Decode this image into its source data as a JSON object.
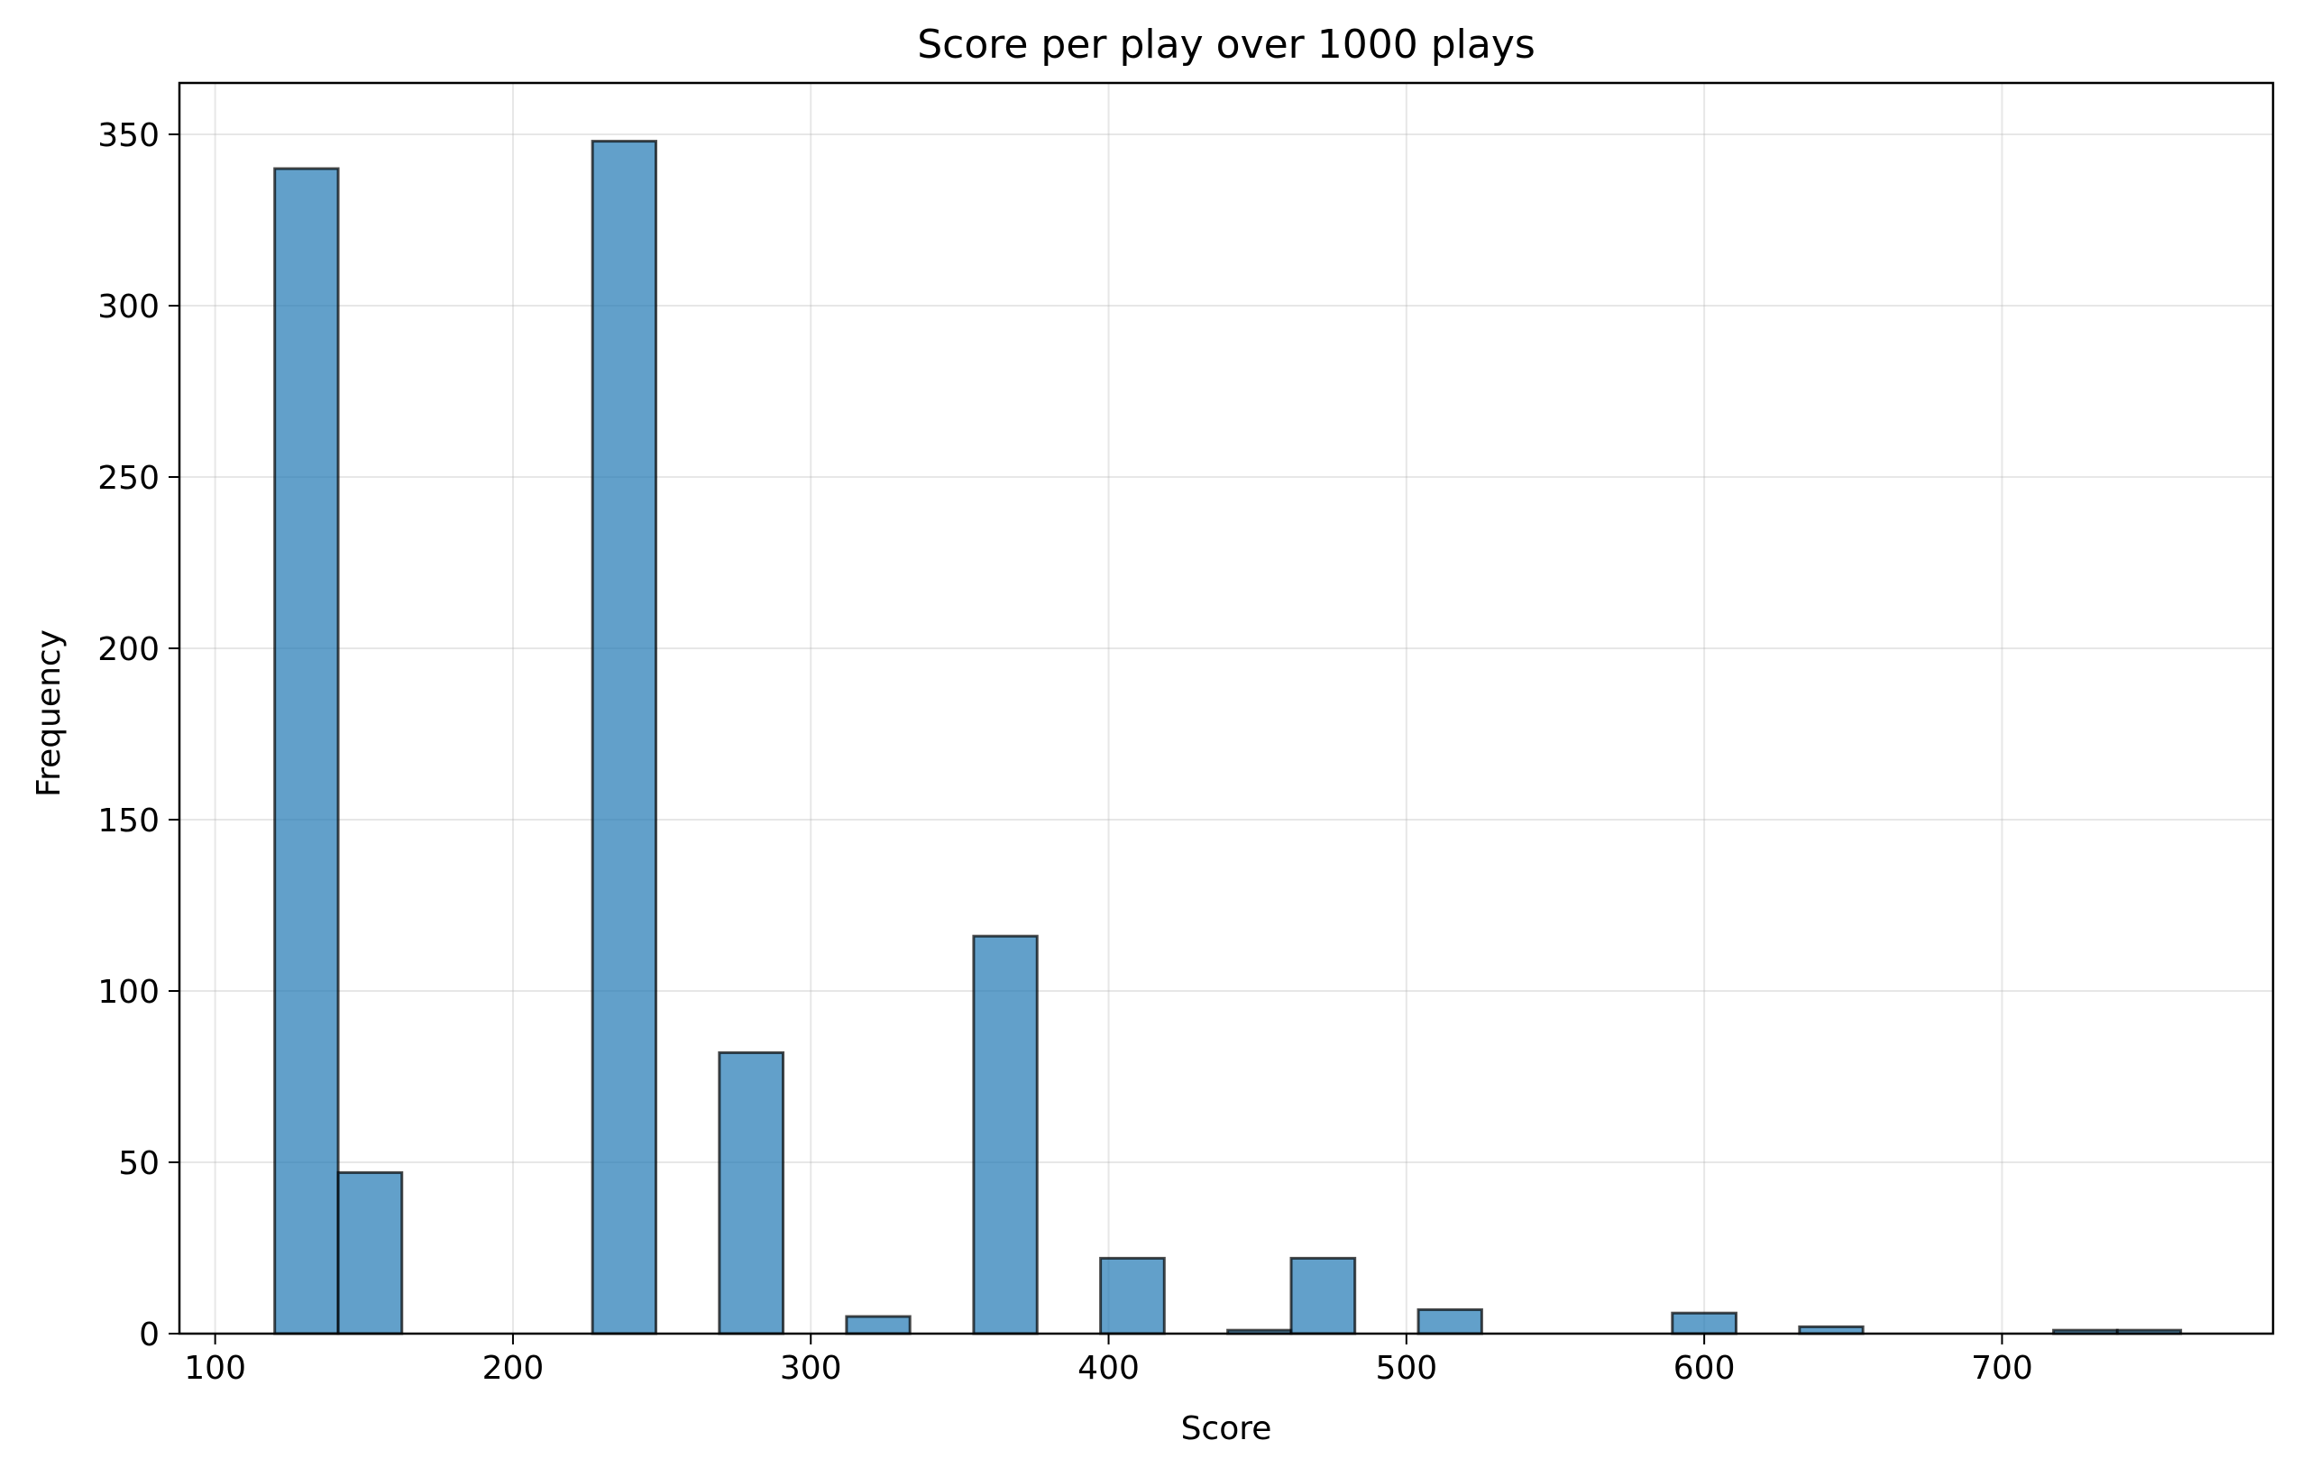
{
  "chart_data": {
    "type": "bar",
    "title": "Score per play over 1000 plays",
    "xlabel": "Score",
    "ylabel": "Frequency",
    "xlim": [
      88,
      791
    ],
    "ylim": [
      0,
      365
    ],
    "xticks": [
      100,
      200,
      300,
      400,
      500,
      600,
      700
    ],
    "yticks": [
      0,
      50,
      100,
      150,
      200,
      250,
      300,
      350
    ],
    "grid": true,
    "bar_color": "#1f77b4",
    "bins": [
      {
        "x0": 120.0,
        "x1": 141.3,
        "value": 340
      },
      {
        "x0": 141.3,
        "x1": 162.7,
        "value": 47
      },
      {
        "x0": 226.7,
        "x1": 248.0,
        "value": 348
      },
      {
        "x0": 269.3,
        "x1": 290.7,
        "value": 82
      },
      {
        "x0": 312.0,
        "x1": 333.3,
        "value": 5
      },
      {
        "x0": 354.7,
        "x1": 376.0,
        "value": 116
      },
      {
        "x0": 397.3,
        "x1": 418.7,
        "value": 22
      },
      {
        "x0": 440.0,
        "x1": 461.3,
        "value": 1
      },
      {
        "x0": 461.3,
        "x1": 482.7,
        "value": 22
      },
      {
        "x0": 504.0,
        "x1": 525.3,
        "value": 7
      },
      {
        "x0": 589.3,
        "x1": 610.7,
        "value": 6
      },
      {
        "x0": 632.0,
        "x1": 653.3,
        "value": 2
      },
      {
        "x0": 717.3,
        "x1": 738.7,
        "value": 1
      },
      {
        "x0": 738.7,
        "x1": 760.0,
        "value": 1
      }
    ]
  }
}
